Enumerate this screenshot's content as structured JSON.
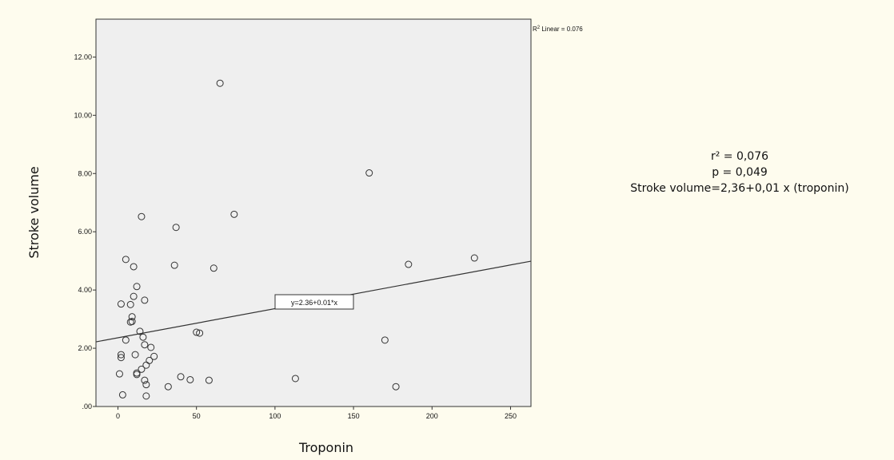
{
  "chart_data": {
    "type": "scatter",
    "title": "",
    "xlabel": "Troponin",
    "ylabel": "Stroke volume",
    "xlim": [
      -14,
      263
    ],
    "ylim": [
      0,
      13.3
    ],
    "x_ticks": [
      0,
      50,
      100,
      150,
      200,
      250
    ],
    "x_tick_labels": [
      "0",
      "50",
      "100",
      "150",
      "200",
      "250"
    ],
    "y_ticks": [
      0,
      2,
      4,
      6,
      8,
      10,
      12
    ],
    "y_tick_labels": [
      ".00",
      "2.00",
      "4.00",
      "6.00",
      "8.00",
      "10.00",
      "12.00"
    ],
    "grid": false,
    "series": [
      {
        "marker": "open-circle",
        "x": [
          65,
          160,
          74,
          15,
          37,
          5,
          36,
          10,
          61,
          185,
          227,
          12,
          2,
          10,
          17,
          8,
          9,
          8,
          9,
          14,
          16,
          5,
          17,
          50,
          52,
          21,
          2,
          2,
          11,
          23,
          170,
          20,
          18,
          15,
          12,
          12,
          1,
          40,
          46,
          58,
          113,
          17,
          18,
          32,
          177,
          3,
          18
        ],
        "y": [
          11.1,
          8.02,
          6.6,
          6.52,
          6.15,
          5.05,
          4.85,
          4.8,
          4.75,
          4.88,
          5.1,
          4.12,
          3.52,
          3.78,
          3.65,
          3.5,
          3.08,
          2.9,
          2.92,
          2.58,
          2.38,
          2.28,
          2.12,
          2.55,
          2.52,
          2.03,
          1.78,
          1.68,
          1.78,
          1.72,
          2.28,
          1.58,
          1.42,
          1.28,
          1.15,
          1.1,
          1.12,
          1.02,
          0.92,
          0.9,
          0.96,
          0.9,
          0.75,
          0.68,
          0.68,
          0.4,
          0.36
        ]
      }
    ],
    "fit_line": {
      "intercept": 2.36,
      "slope": 0.01,
      "label": "y=2.36+0.01*x"
    },
    "r2_label": {
      "prefix": "R",
      "sup": "2",
      "suffix": " Linear = 0.076"
    },
    "annotations": [
      "r² = 0,076",
      "p = 0,049",
      "Stroke volume=2,36+0,01 x (troponin)"
    ],
    "colors": {
      "page_bg": "#fefcee",
      "plot_bg": "#efefef",
      "marker": "#333333",
      "line": "#333333"
    }
  }
}
